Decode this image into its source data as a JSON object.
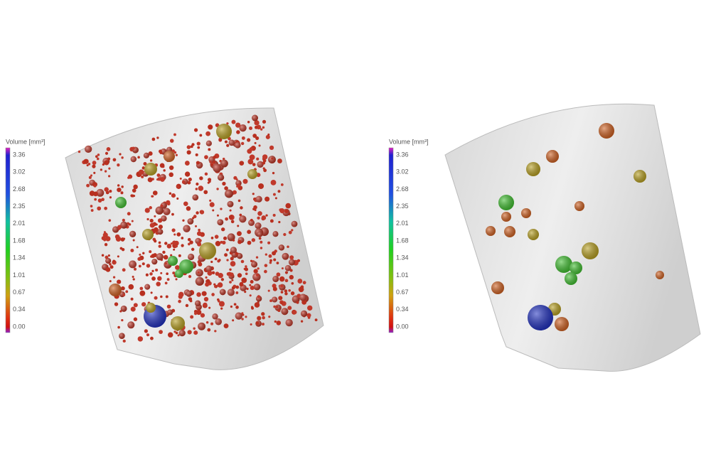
{
  "panels": [
    {
      "legend": {
        "title": "Volume [mm³]",
        "ticks": [
          "3.36",
          "3.02",
          "2.68",
          "2.35",
          "2.01",
          "1.68",
          "1.34",
          "1.01",
          "0.67",
          "0.34",
          "0.00"
        ]
      }
    },
    {
      "legend": {
        "title": "Volume [mm³]",
        "ticks": [
          "3.36",
          "3.02",
          "2.68",
          "2.35",
          "2.01",
          "1.68",
          "1.34",
          "1.01",
          "0.67",
          "0.34",
          "0.00"
        ]
      }
    }
  ]
}
